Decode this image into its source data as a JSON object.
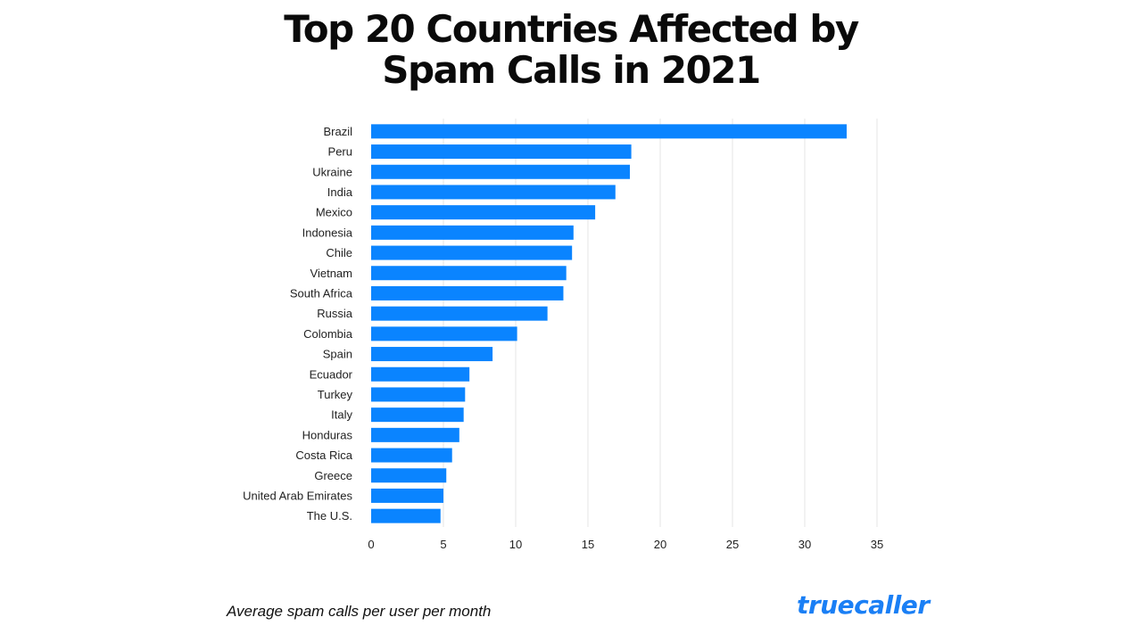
{
  "title_lines": [
    "Top 20 Countries Affected by",
    "Spam Calls in 2021"
  ],
  "footnote": "Average spam calls per user per month",
  "brand": {
    "text": "truecaller",
    "color": "#1a7ff5"
  },
  "colors": {
    "bar": "#0a84ff",
    "grid": "#e6e6e6",
    "text": "#222222"
  },
  "chart_data": {
    "type": "bar",
    "orientation": "horizontal",
    "title": "Top 20 Countries Affected by Spam Calls in 2021",
    "xlabel": "",
    "ylabel": "",
    "categories": [
      "Brazil",
      "Peru",
      "Ukraine",
      "India",
      "Mexico",
      "Indonesia",
      "Chile",
      "Vietnam",
      "South Africa",
      "Russia",
      "Colombia",
      "Spain",
      "Ecuador",
      "Turkey",
      "Italy",
      "Honduras",
      "Costa Rica",
      "Greece",
      "United Arab Emirates",
      "The U.S."
    ],
    "values": [
      32.9,
      18,
      17.9,
      16.9,
      15.5,
      14,
      13.9,
      13.5,
      13.3,
      12.2,
      10.1,
      8.4,
      6.8,
      6.5,
      6.4,
      6.1,
      5.6,
      5.2,
      5.0,
      4.8
    ],
    "xlim": [
      0,
      35
    ],
    "xticks": [
      0,
      5,
      10,
      15,
      20,
      25,
      30,
      35
    ],
    "grid": true,
    "legend": "none"
  }
}
